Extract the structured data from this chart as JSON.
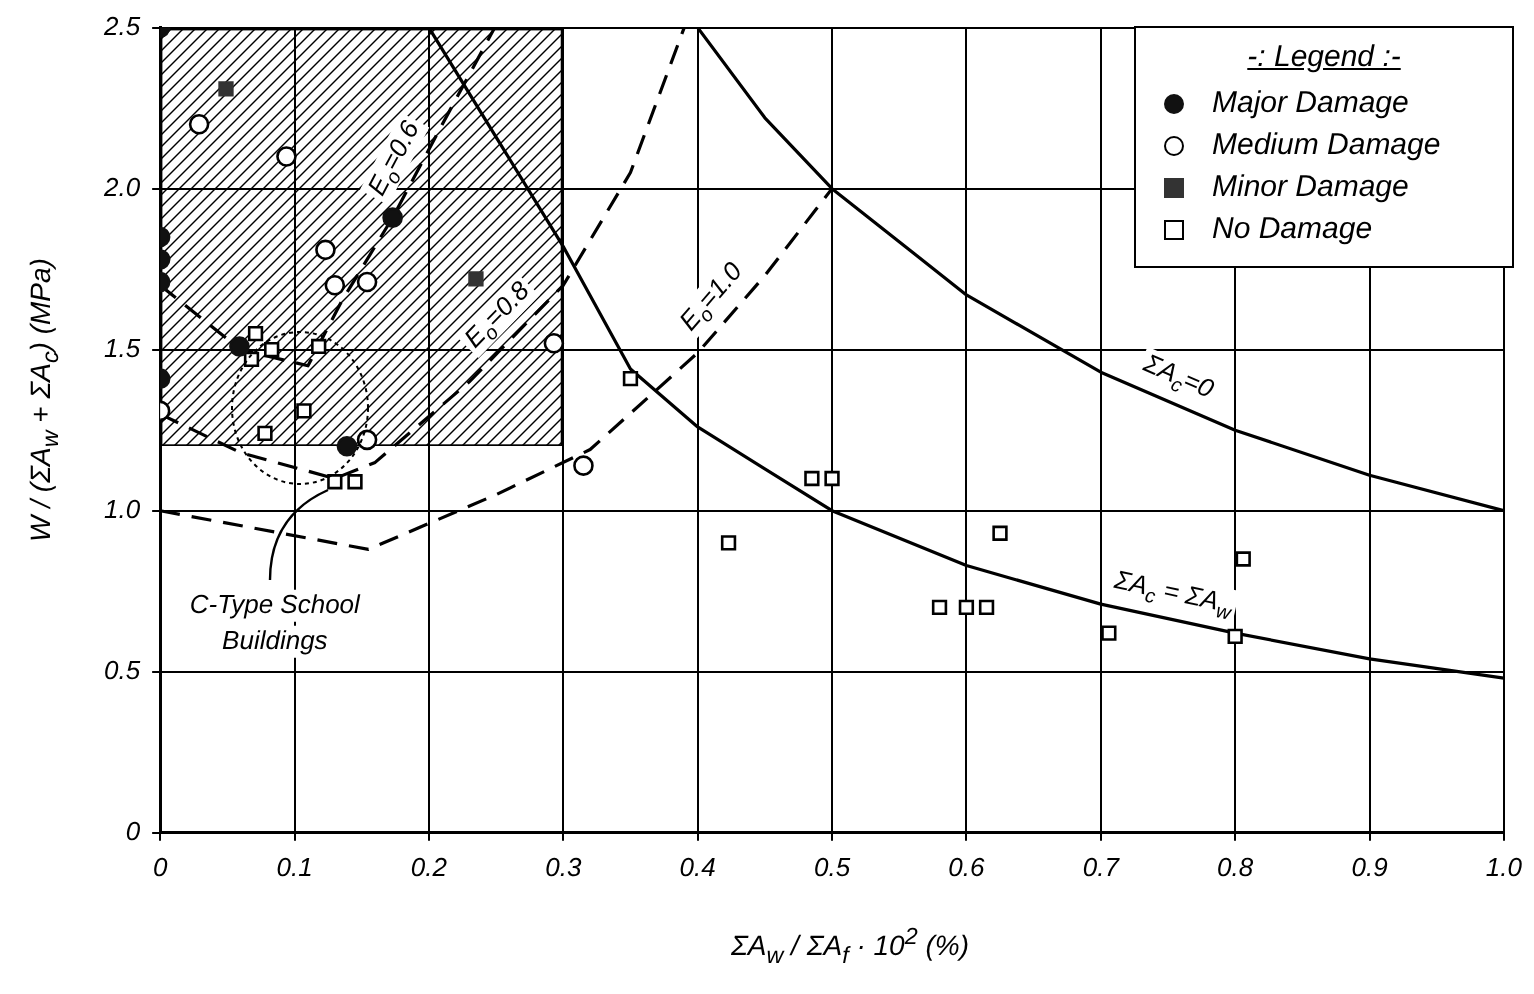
{
  "chart_data": {
    "type": "scatter",
    "xlabel": "ΣA$_{w}$ / ΣA$_{f}$ · 10$^{2}$ (%)",
    "ylabel": "W / (ΣA$_{w}$ + ΣA$_{c}$) (MPa)",
    "legend_title": "-: Legend :-",
    "legend": "top right",
    "grid": true,
    "xlim": [
      0,
      1
    ],
    "xticks": [
      0,
      0.1,
      0.2,
      0.3,
      0.4,
      0.5,
      0.6,
      0.7,
      0.8,
      0.9,
      {
        "value": 1,
        "label": "1.0"
      }
    ],
    "ylim": [
      0,
      2.5
    ],
    "yticks": [
      0,
      0.5,
      {
        "value": 1,
        "label": "1.0"
      },
      1.5,
      {
        "value": 2,
        "label": "2.0"
      },
      2.5
    ],
    "series": [
      {
        "name": "Major Damage",
        "type": "scatter",
        "marker": "circle",
        "color": "#111111",
        "x": [
          0,
          0,
          0,
          0,
          0,
          0.059,
          0.173,
          0.139
        ],
        "values": [
          2.5,
          1.85,
          1.78,
          1.71,
          1.41,
          1.51,
          1.91,
          1.2
        ]
      },
      {
        "name": "Medium Damage",
        "type": "scatter",
        "marker": "circle",
        "color": "#ffffff",
        "x": [
          0.029,
          0.094,
          0.123,
          0.13,
          0.154,
          0,
          0.154,
          0.293,
          0.315
        ],
        "values": [
          2.2,
          2.1,
          1.81,
          1.7,
          1.71,
          1.31,
          1.22,
          1.52,
          1.14
        ]
      },
      {
        "name": "Minor Damage",
        "type": "scatter",
        "marker": "square",
        "color": "#333333",
        "x": [
          0.049,
          0.235
        ],
        "values": [
          2.31,
          1.72
        ]
      },
      {
        "name": "No Damage",
        "type": "scatter",
        "marker": "square",
        "color": "#ffffff",
        "x": [
          0.071,
          0.083,
          0.068,
          0.118,
          0.107,
          0.078,
          0.13,
          0.145,
          0.35,
          0.485,
          0.5,
          0.423,
          0.625,
          0.58,
          0.6,
          0.615,
          0.706,
          0.806,
          0.8
        ],
        "values": [
          1.55,
          1.5,
          1.47,
          1.51,
          1.31,
          1.24,
          1.09,
          1.09,
          1.41,
          1.1,
          1.1,
          0.9,
          0.93,
          0.7,
          0.7,
          0.7,
          0.62,
          0.85,
          0.61
        ]
      },
      {
        "name": "ΣA$_{c}$=0",
        "type": "line",
        "line_style": "solid",
        "marker": "none",
        "color": "#000000",
        "x": [
          0.4,
          0.45,
          0.5,
          0.6,
          0.7,
          0.8,
          0.9,
          1.0
        ],
        "values": [
          2.5,
          2.22,
          2.0,
          1.67,
          1.43,
          1.25,
          1.11,
          1.0
        ]
      },
      {
        "name": "ΣA$_{c}$ = ΣA$_{w}$",
        "type": "line",
        "line_style": "solid",
        "marker": "none",
        "color": "#000000",
        "x": [
          0.2,
          0.25,
          0.3,
          0.35,
          0.4,
          0.5,
          0.6,
          0.7,
          0.8,
          0.9,
          1.0
        ],
        "values": [
          2.5,
          2.16,
          1.82,
          1.44,
          1.26,
          1.0,
          0.83,
          0.71,
          0.62,
          0.54,
          0.48
        ]
      },
      {
        "name": "E$_{o}$=0.6",
        "type": "line",
        "line_style": "dashed",
        "marker": "none",
        "color": "#000000",
        "x": [
          0,
          0.06,
          0.11,
          0.135,
          0.173,
          0.21,
          0.249
        ],
        "values": [
          1.7,
          1.5,
          1.45,
          1.65,
          1.91,
          2.2,
          2.5
        ]
      },
      {
        "name": "E$_{o}$=0.8",
        "type": "line",
        "line_style": "dashed",
        "marker": "none",
        "color": "#000000",
        "x": [
          0,
          0.06,
          0.13,
          0.16,
          0.23,
          0.3,
          0.35,
          0.39
        ],
        "values": [
          1.3,
          1.18,
          1.1,
          1.15,
          1.4,
          1.7,
          2.05,
          2.5
        ]
      },
      {
        "name": "E$_{o}$=1.0",
        "type": "line",
        "line_style": "dashed",
        "marker": "none",
        "color": "#000000",
        "x": [
          0,
          0.155,
          0.25,
          0.32,
          0.4,
          0.45,
          0.5
        ],
        "values": [
          1.0,
          0.88,
          1.05,
          1.19,
          1.49,
          1.73,
          2.0
        ]
      }
    ],
    "annotations": [
      {
        "text": "C-Type School Buildings",
        "x": 0.13,
        "y": 1.09
      }
    ]
  }
}
